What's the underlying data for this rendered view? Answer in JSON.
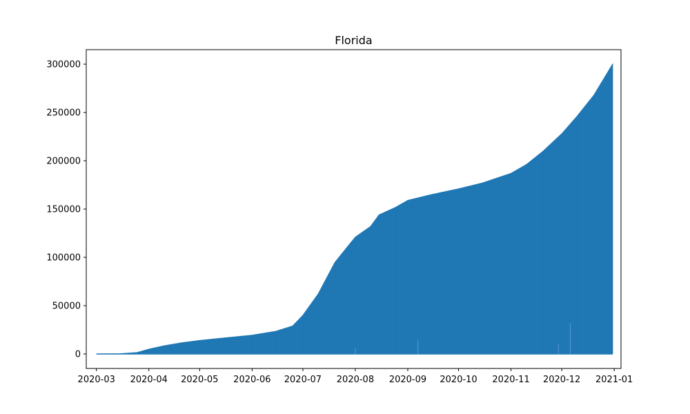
{
  "chart_data": {
    "type": "area",
    "title": "Florida",
    "xlabel": "",
    "ylabel": "",
    "x_axis_type": "date",
    "xlim": [
      "2020-02-24",
      "2021-01-05"
    ],
    "ylim": [
      -15000,
      315000
    ],
    "x_ticks": [
      "2020-03-01",
      "2020-04-01",
      "2020-05-01",
      "2020-06-01",
      "2020-07-01",
      "2020-08-01",
      "2020-09-01",
      "2020-10-01",
      "2020-11-01",
      "2020-12-01",
      "2021-01-01"
    ],
    "x_tick_labels": [
      "2020-03",
      "2020-04",
      "2020-05",
      "2020-06",
      "2020-07",
      "2020-08",
      "2020-09",
      "2020-10",
      "2020-11",
      "2020-12",
      "2021-01"
    ],
    "y_ticks": [
      0,
      50000,
      100000,
      150000,
      200000,
      250000,
      300000
    ],
    "y_tick_labels": [
      "0",
      "50000",
      "100000",
      "150000",
      "200000",
      "250000",
      "300000"
    ],
    "grid": false,
    "legend": false,
    "color": "#1f77b4",
    "series": [
      {
        "x": [
          "2020-03-01",
          "2020-03-15",
          "2020-03-25",
          "2020-04-01",
          "2020-04-10",
          "2020-04-20",
          "2020-05-01",
          "2020-05-15",
          "2020-06-01",
          "2020-06-15",
          "2020-06-25",
          "2020-07-01",
          "2020-07-10",
          "2020-07-20",
          "2020-08-01",
          "2020-08-10",
          "2020-08-15",
          "2020-08-25",
          "2020-09-01",
          "2020-09-15",
          "2020-10-01",
          "2020-10-15",
          "2020-11-01",
          "2020-11-10",
          "2020-11-20",
          "2020-12-01",
          "2020-12-10",
          "2020-12-20",
          "2020-12-31"
        ],
        "values": [
          0,
          300,
          1500,
          5000,
          8500,
          11500,
          14000,
          16500,
          19500,
          23500,
          29000,
          40000,
          62000,
          95000,
          121000,
          132000,
          144000,
          152000,
          159000,
          165000,
          171000,
          177000,
          187000,
          196000,
          210000,
          228000,
          246000,
          268000,
          300000
        ]
      }
    ],
    "spikes": [
      {
        "x": "2020-08-01",
        "value": 6000
      },
      {
        "x": "2020-09-07",
        "value": 15000
      },
      {
        "x": "2020-11-29",
        "value": 10000
      },
      {
        "x": "2020-12-06",
        "value": 32000
      }
    ]
  }
}
